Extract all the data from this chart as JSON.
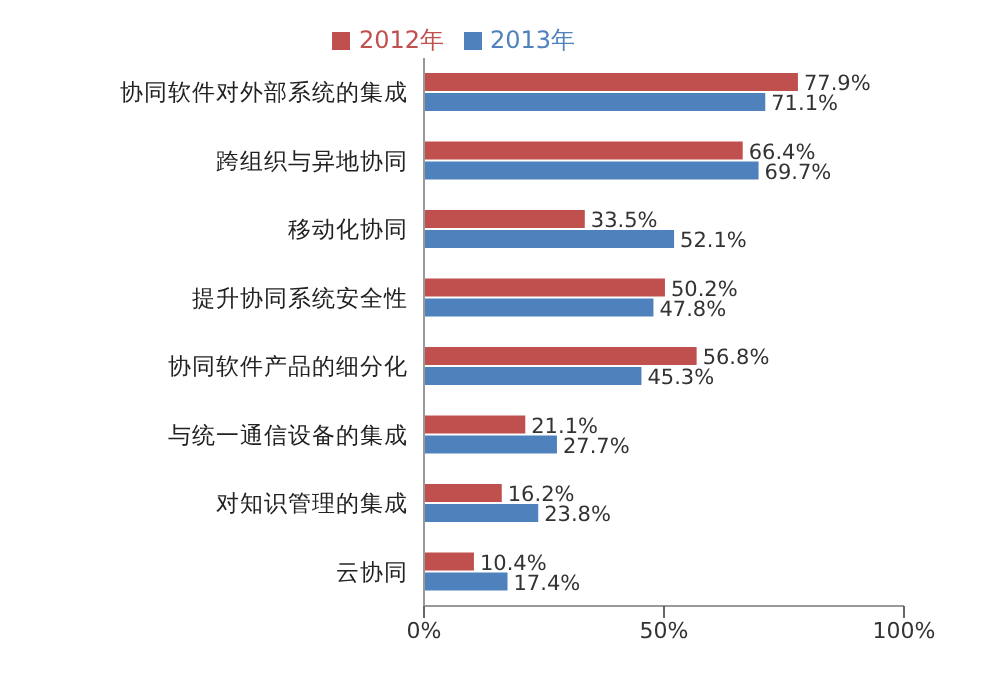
{
  "chart_data": {
    "type": "bar",
    "orientation": "horizontal",
    "categories": [
      "协同软件对外部系统的集成",
      "跨组织与异地协同",
      "移动化协同",
      "提升协同系统安全性",
      "协同软件产品的细分化",
      "与统一通信设备的集成",
      "对知识管理的集成",
      "云协同"
    ],
    "series": [
      {
        "name": "2012年",
        "color": "#c0504d",
        "values": [
          77.9,
          66.4,
          33.5,
          50.2,
          56.8,
          21.1,
          16.2,
          10.4
        ],
        "value_labels": [
          "77.9%",
          "66.4%",
          "33.5%",
          "50.2%",
          "56.8%",
          "21.1%",
          "16.2%",
          "10.4%"
        ]
      },
      {
        "name": "2013年",
        "color": "#4f81bd",
        "values": [
          71.1,
          69.7,
          52.1,
          47.8,
          45.3,
          27.7,
          23.8,
          17.4
        ],
        "value_labels": [
          "71.1%",
          "69.7%",
          "52.1%",
          "47.8%",
          "45.3%",
          "27.7%",
          "23.8%",
          "17.4%"
        ]
      }
    ],
    "xlim": [
      0,
      100
    ],
    "xticks": [
      {
        "value": 0,
        "label": "0%"
      },
      {
        "value": 50,
        "label": "50%"
      },
      {
        "value": 100,
        "label": "100%"
      }
    ],
    "legend": "top",
    "grid": false
  }
}
